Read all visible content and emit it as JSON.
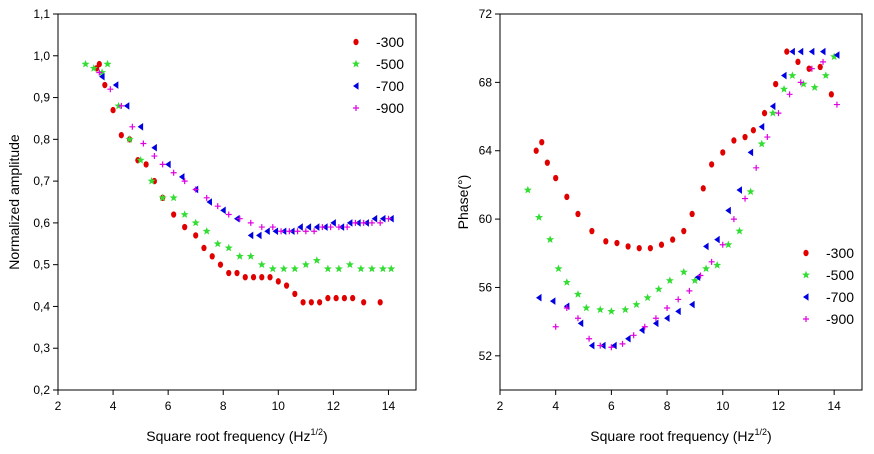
{
  "chart_data": [
    {
      "type": "scatter",
      "title": "",
      "xlabel": "Square root frequency (Hz",
      "xlabel_sup": "1/2",
      "xlabel_close": ")",
      "ylabel": "Normalized amplitude",
      "xlim": [
        2,
        15
      ],
      "ylim": [
        0.2,
        1.1
      ],
      "xticks": [
        2,
        4,
        6,
        8,
        10,
        12,
        14
      ],
      "yticks": [
        0.2,
        0.3,
        0.4,
        0.5,
        0.6,
        0.7,
        0.8,
        0.9,
        1.0,
        1.1
      ],
      "ytick_labels": [
        "0,2",
        "0,3",
        "0,4",
        "0,5",
        "0,6",
        "0,7",
        "0,8",
        "0,9",
        "1,0",
        "1,1"
      ],
      "legend_position": "top-right",
      "series": [
        {
          "name": "-300",
          "color": "#e00000",
          "marker": "circle",
          "x": [
            3.4,
            3.5,
            3.7,
            4.0,
            4.3,
            4.6,
            4.9,
            5.2,
            5.5,
            5.8,
            6.2,
            6.6,
            7.0,
            7.3,
            7.6,
            7.9,
            8.2,
            8.5,
            8.8,
            9.1,
            9.4,
            9.7,
            10.0,
            10.3,
            10.6,
            10.9,
            11.2,
            11.5,
            11.8,
            12.1,
            12.4,
            12.7,
            13.1,
            13.7
          ],
          "y": [
            0.97,
            0.98,
            0.93,
            0.87,
            0.81,
            0.8,
            0.75,
            0.74,
            0.7,
            0.66,
            0.62,
            0.59,
            0.57,
            0.54,
            0.52,
            0.5,
            0.48,
            0.48,
            0.47,
            0.47,
            0.47,
            0.47,
            0.46,
            0.45,
            0.43,
            0.41,
            0.41,
            0.41,
            0.42,
            0.42,
            0.42,
            0.42,
            0.41,
            0.41
          ]
        },
        {
          "name": "-500",
          "color": "#33dd33",
          "marker": "star",
          "x": [
            3.0,
            3.3,
            3.6,
            3.8,
            4.2,
            4.6,
            5.0,
            5.4,
            5.8,
            6.2,
            6.6,
            7.0,
            7.4,
            7.8,
            8.2,
            8.6,
            9.0,
            9.4,
            9.8,
            10.2,
            10.6,
            11.0,
            11.4,
            11.8,
            12.2,
            12.6,
            13.0,
            13.4,
            13.8,
            14.1
          ],
          "y": [
            0.98,
            0.97,
            0.96,
            0.98,
            0.88,
            0.8,
            0.75,
            0.7,
            0.66,
            0.66,
            0.62,
            0.6,
            0.58,
            0.55,
            0.54,
            0.52,
            0.52,
            0.5,
            0.49,
            0.49,
            0.49,
            0.5,
            0.51,
            0.49,
            0.49,
            0.5,
            0.49,
            0.49,
            0.49,
            0.49
          ]
        },
        {
          "name": "-700",
          "color": "#0000e0",
          "marker": "triangle-left",
          "x": [
            3.6,
            4.1,
            4.5,
            5.0,
            5.5,
            6.0,
            6.5,
            7.0,
            7.5,
            8.0,
            8.5,
            9.0,
            9.3,
            9.6,
            9.9,
            10.2,
            10.5,
            10.8,
            11.1,
            11.4,
            11.7,
            12.0,
            12.3,
            12.6,
            12.9,
            13.2,
            13.5,
            13.8,
            14.1
          ],
          "y": [
            0.95,
            0.93,
            0.88,
            0.83,
            0.78,
            0.74,
            0.71,
            0.68,
            0.65,
            0.63,
            0.61,
            0.57,
            0.57,
            0.58,
            0.58,
            0.58,
            0.58,
            0.59,
            0.59,
            0.59,
            0.59,
            0.6,
            0.59,
            0.6,
            0.6,
            0.6,
            0.61,
            0.61,
            0.61
          ]
        },
        {
          "name": "-900",
          "color": "#e000e0",
          "marker": "plus",
          "x": [
            3.5,
            3.9,
            4.3,
            4.7,
            5.1,
            5.5,
            5.8,
            6.2,
            6.6,
            7.0,
            7.4,
            7.8,
            8.2,
            8.6,
            9.0,
            9.4,
            9.8,
            10.1,
            10.4,
            10.7,
            11.0,
            11.3,
            11.6,
            11.9,
            12.2,
            12.5,
            12.8,
            13.1,
            13.4,
            13.7,
            14.0
          ],
          "y": [
            0.96,
            0.92,
            0.88,
            0.83,
            0.79,
            0.76,
            0.74,
            0.72,
            0.7,
            0.68,
            0.66,
            0.64,
            0.62,
            0.61,
            0.6,
            0.59,
            0.59,
            0.58,
            0.58,
            0.58,
            0.58,
            0.58,
            0.59,
            0.59,
            0.59,
            0.59,
            0.6,
            0.6,
            0.6,
            0.6,
            0.61
          ]
        }
      ]
    },
    {
      "type": "scatter",
      "title": "",
      "xlabel": "Square root frequency (Hz",
      "xlabel_sup": "1/2",
      "xlabel_close": ")",
      "ylabel": "Phase(°)",
      "xlim": [
        2,
        15
      ],
      "ylim": [
        50,
        72
      ],
      "xticks": [
        2,
        4,
        6,
        8,
        10,
        12,
        14
      ],
      "yticks": [
        52,
        56,
        60,
        64,
        68,
        72
      ],
      "ytick_labels": [
        "52",
        "56",
        "60",
        "64",
        "68",
        "72"
      ],
      "legend_position": "bottom-right",
      "series": [
        {
          "name": "-300",
          "color": "#e00000",
          "marker": "circle",
          "x": [
            3.3,
            3.5,
            3.7,
            4.0,
            4.4,
            4.8,
            5.3,
            5.8,
            6.2,
            6.6,
            7.0,
            7.4,
            7.8,
            8.2,
            8.6,
            8.9,
            9.3,
            9.6,
            10.0,
            10.4,
            10.8,
            11.1,
            11.5,
            11.9,
            12.3,
            12.7,
            13.1,
            13.5,
            13.9
          ],
          "y": [
            64.0,
            64.5,
            63.3,
            62.4,
            61.3,
            60.3,
            59.3,
            58.7,
            58.6,
            58.4,
            58.3,
            58.3,
            58.5,
            58.8,
            59.3,
            60.3,
            61.8,
            63.2,
            63.9,
            64.6,
            64.8,
            65.2,
            66.2,
            67.9,
            69.8,
            69.2,
            68.8,
            68.9,
            67.3
          ]
        },
        {
          "name": "-500",
          "color": "#33dd33",
          "marker": "star",
          "x": [
            3.0,
            3.4,
            3.8,
            4.1,
            4.4,
            4.8,
            5.1,
            5.6,
            6.0,
            6.5,
            6.9,
            7.3,
            7.7,
            8.1,
            8.6,
            9.0,
            9.4,
            9.8,
            10.2,
            10.6,
            11.0,
            11.4,
            11.8,
            12.2,
            12.5,
            12.9,
            13.3,
            13.7,
            14.0
          ],
          "y": [
            61.7,
            60.1,
            58.8,
            57.1,
            56.3,
            55.6,
            54.8,
            54.7,
            54.6,
            54.7,
            55.0,
            55.4,
            55.9,
            56.4,
            56.9,
            56.4,
            57.1,
            57.3,
            58.5,
            59.3,
            61.6,
            64.4,
            66.2,
            67.6,
            68.4,
            67.9,
            67.7,
            68.4,
            69.5
          ]
        },
        {
          "name": "-700",
          "color": "#0000e0",
          "marker": "triangle-left",
          "x": [
            3.4,
            3.9,
            4.4,
            4.9,
            5.3,
            5.7,
            6.1,
            6.6,
            7.1,
            7.6,
            8.0,
            8.4,
            8.9,
            9.1,
            9.4,
            9.8,
            10.2,
            10.6,
            11.0,
            11.4,
            11.8,
            12.2,
            12.5,
            12.8,
            13.2,
            13.6,
            14.1
          ],
          "y": [
            55.4,
            55.2,
            54.9,
            53.9,
            52.6,
            52.6,
            52.6,
            53.0,
            53.5,
            53.9,
            54.2,
            54.6,
            55.0,
            56.6,
            58.4,
            58.8,
            60.5,
            61.7,
            63.9,
            65.4,
            66.6,
            68.4,
            69.8,
            69.8,
            69.8,
            69.8,
            69.6
          ]
        },
        {
          "name": "-900",
          "color": "#e000e0",
          "marker": "plus",
          "x": [
            4.0,
            4.4,
            4.8,
            5.2,
            5.6,
            6.0,
            6.4,
            6.8,
            7.2,
            7.6,
            8.0,
            8.4,
            8.8,
            9.2,
            9.6,
            10.0,
            10.4,
            10.8,
            11.2,
            11.6,
            12.0,
            12.4,
            12.8,
            13.2,
            13.6,
            14.1
          ],
          "y": [
            53.7,
            54.8,
            54.2,
            53.0,
            52.6,
            52.5,
            52.7,
            53.2,
            53.7,
            54.2,
            54.8,
            55.3,
            55.8,
            56.7,
            57.5,
            58.5,
            60.0,
            61.2,
            63.0,
            64.8,
            66.2,
            67.3,
            68.0,
            68.8,
            69.2,
            66.7
          ]
        }
      ]
    }
  ]
}
